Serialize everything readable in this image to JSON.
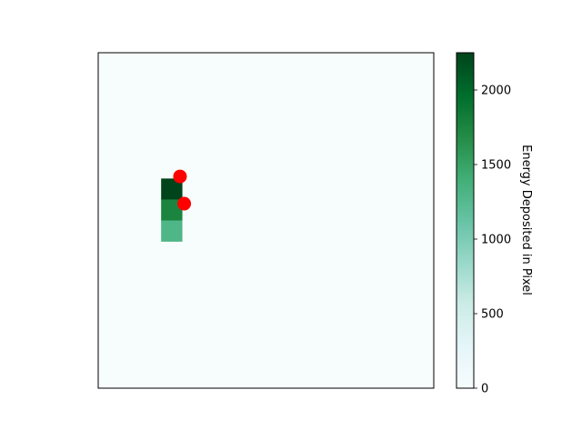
{
  "chart_data": {
    "type": "heatmap",
    "colorbar": {
      "label": "Energy Deposited in Pixel",
      "min": 0,
      "max": 2250,
      "ticks": [
        0,
        500,
        1000,
        1500,
        2000
      ],
      "colormap": "BuGn"
    },
    "grid": {
      "rows": 16,
      "cols": 16
    },
    "cells": [
      {
        "row": 6,
        "col": 3,
        "value": 2250
      },
      {
        "row": 7,
        "col": 3,
        "value": 1750
      },
      {
        "row": 8,
        "col": 3,
        "value": 1300
      }
    ],
    "markers": [
      {
        "row": 5.9,
        "col": 3.9,
        "color": "#ff0000"
      },
      {
        "row": 7.2,
        "col": 4.1,
        "color": "#ff0000"
      }
    ],
    "background_color": "#f7fcfd",
    "axis_ticks": false
  }
}
